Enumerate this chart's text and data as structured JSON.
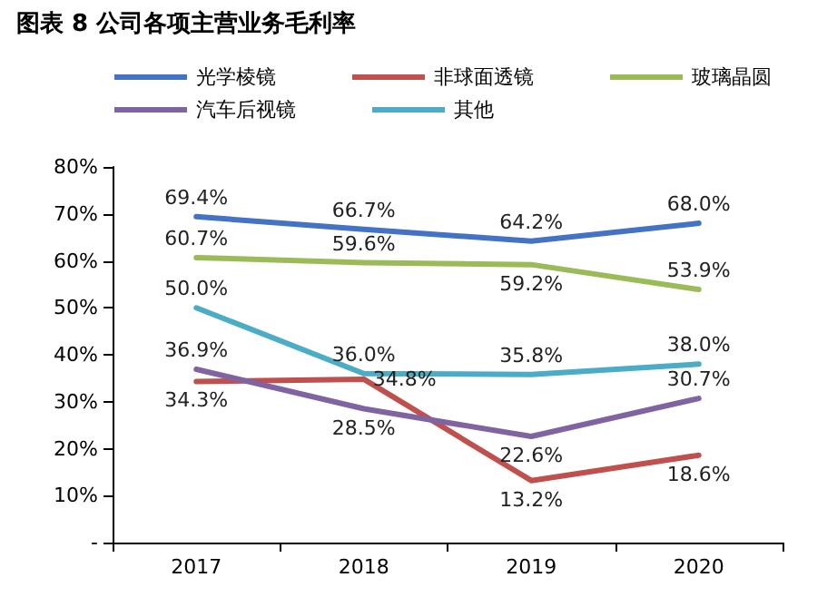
{
  "chart_data": {
    "type": "line",
    "title": "图表 8 公司各项主营业务毛利率",
    "categories": [
      "2017",
      "2018",
      "2019",
      "2020"
    ],
    "series": [
      {
        "name": "光学棱镜",
        "color": "#4472c4",
        "values": [
          69.4,
          66.7,
          64.2,
          68.0
        ],
        "value_labels": [
          "69.4%",
          "66.7%",
          "64.2%",
          "68.0%"
        ]
      },
      {
        "name": "非球面透镜",
        "color": "#c0504d",
        "values": [
          34.3,
          34.8,
          13.2,
          18.6
        ],
        "value_labels": [
          "34.3%",
          "34.8%",
          "13.2%",
          "18.6%"
        ]
      },
      {
        "name": "玻璃晶圆",
        "color": "#9bbb59",
        "values": [
          60.7,
          59.6,
          59.2,
          53.9
        ],
        "value_labels": [
          "60.7%",
          "59.6%",
          "59.2%",
          "53.9%"
        ]
      },
      {
        "name": "汽车后视镜",
        "color": "#8064a2",
        "values": [
          36.9,
          28.5,
          22.6,
          30.7
        ],
        "value_labels": [
          "36.9%",
          "28.5%",
          "22.6%",
          "30.7%"
        ]
      },
      {
        "name": "其他",
        "color": "#4bacc6",
        "values": [
          50.0,
          36.0,
          35.8,
          38.0
        ],
        "value_labels": [
          "50.0%",
          "36.0%",
          "35.8%",
          "38.0%"
        ]
      }
    ],
    "ylim": [
      0,
      80
    ],
    "yticks": [
      {
        "value": 0,
        "label": "-"
      },
      {
        "value": 10,
        "label": "10%"
      },
      {
        "value": 20,
        "label": "20%"
      },
      {
        "value": 30,
        "label": "30%"
      },
      {
        "value": 40,
        "label": "40%"
      },
      {
        "value": 50,
        "label": "50%"
      },
      {
        "value": 60,
        "label": "60%"
      },
      {
        "value": 70,
        "label": "70%"
      },
      {
        "value": 80,
        "label": "80%"
      }
    ],
    "grid": false,
    "legend": "top",
    "marker": "none",
    "line_style": "solid"
  }
}
